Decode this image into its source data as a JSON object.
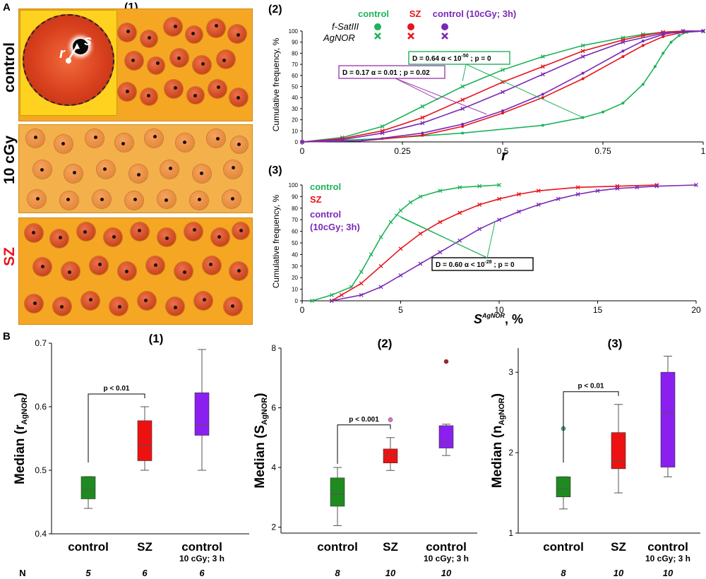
{
  "panel_A": {
    "letter": "A",
    "micro_title": "(1)",
    "rows": [
      "control",
      "10 cGy",
      "SZ"
    ],
    "inset_labels": {
      "r": "r",
      "s": "s"
    }
  },
  "panel_B": {
    "letter": "B",
    "n_label": "N"
  },
  "colors": {
    "control": "#1fb25a",
    "sz": "#e8141b",
    "irr": "#7a29b6",
    "box_control": "#1f8a1f",
    "box_sz": "#ee1111",
    "box_irr": "#8a1ff0"
  },
  "chart_data": [
    {
      "id": "A2",
      "type": "line",
      "panel_label": "(2)",
      "ylabel": "Cumulative frequency, %",
      "xlabel": "r",
      "xlim": [
        0,
        1
      ],
      "ylim": [
        0,
        100
      ],
      "x_ticks": [
        "0",
        "0.25",
        "0.5",
        "0.75",
        "1"
      ],
      "y_ticks": [
        "0",
        "10",
        "20",
        "30",
        "40",
        "50",
        "60",
        "70",
        "80",
        "90",
        "100"
      ],
      "legend": {
        "headers": [
          "control",
          "SZ",
          "control (10cGy; 3h)"
        ],
        "rows": [
          "f-SatIII",
          "AgNOR"
        ]
      },
      "annotations": [
        {
          "text": "D = 0.64   α < 10",
          "sup": "-50",
          "tail": " ; p = 0",
          "color": "#1fb25a"
        },
        {
          "text": "D = 0.17   α = 0.01 ; p = 0.02",
          "color": "#a040b0"
        }
      ],
      "series": [
        {
          "name": "control f-SatIII",
          "color": "#1fb25a",
          "marker": "dot",
          "x": [
            0,
            0.2,
            0.4,
            0.6,
            0.7,
            0.75,
            0.8,
            0.85,
            0.88,
            0.9,
            0.92,
            0.94,
            0.96,
            1.0
          ],
          "y": [
            0,
            3,
            8,
            15,
            22,
            27,
            35,
            52,
            68,
            80,
            90,
            96,
            99,
            100
          ]
        },
        {
          "name": "control AgNOR",
          "color": "#1fb25a",
          "marker": "x",
          "x": [
            0,
            0.1,
            0.2,
            0.3,
            0.4,
            0.5,
            0.6,
            0.7,
            0.8,
            0.85,
            0.9,
            0.95,
            1.0
          ],
          "y": [
            0,
            4,
            14,
            32,
            50,
            65,
            77,
            87,
            94,
            97,
            99,
            100,
            100
          ]
        },
        {
          "name": "SZ f-SatIII",
          "color": "#e8141b",
          "marker": "dot",
          "x": [
            0,
            0.15,
            0.3,
            0.4,
            0.5,
            0.6,
            0.7,
            0.8,
            0.85,
            0.9,
            0.95,
            1.0
          ],
          "y": [
            0,
            1,
            6,
            14,
            26,
            40,
            57,
            77,
            87,
            95,
            99,
            100
          ]
        },
        {
          "name": "SZ AgNOR",
          "color": "#e8141b",
          "marker": "x",
          "x": [
            0,
            0.1,
            0.2,
            0.3,
            0.4,
            0.5,
            0.6,
            0.7,
            0.8,
            0.85,
            0.9,
            0.95,
            1.0
          ],
          "y": [
            0,
            3,
            10,
            22,
            38,
            54,
            68,
            82,
            92,
            96,
            99,
            100,
            100
          ]
        },
        {
          "name": "control (10cGy; 3h) f-SatIII",
          "color": "#7a29b6",
          "marker": "dot",
          "x": [
            0,
            0.15,
            0.3,
            0.4,
            0.5,
            0.6,
            0.7,
            0.8,
            0.85,
            0.9,
            0.95,
            1.0
          ],
          "y": [
            0,
            1,
            8,
            16,
            28,
            43,
            62,
            82,
            91,
            97,
            100,
            100
          ]
        },
        {
          "name": "control (10cGy; 3h) AgNOR",
          "color": "#7a29b6",
          "marker": "x",
          "x": [
            0,
            0.1,
            0.2,
            0.3,
            0.4,
            0.5,
            0.6,
            0.7,
            0.8,
            0.9,
            1.0
          ],
          "y": [
            0,
            2,
            8,
            17,
            30,
            45,
            61,
            77,
            90,
            98,
            100
          ]
        }
      ]
    },
    {
      "id": "A3",
      "type": "line",
      "panel_label": "(3)",
      "ylabel": "Cumulative frequency, %",
      "xlabel": "S",
      "xlabel_sup": "AgNOR",
      "xlabel_tail": ", %",
      "xlim": [
        0,
        20
      ],
      "ylim": [
        0,
        100
      ],
      "x_ticks": [
        "0",
        "5",
        "10",
        "15",
        "20"
      ],
      "y_ticks": [
        "0",
        "10",
        "20",
        "30",
        "40",
        "50",
        "60",
        "70",
        "80",
        "90",
        "100"
      ],
      "legend": [
        "control",
        "SZ",
        "control",
        "(10cGy; 3h)"
      ],
      "annotation": {
        "text": "D = 0.60   α < 10",
        "sup": "-28",
        "tail": " ; p = 0"
      },
      "series": [
        {
          "name": "control",
          "color": "#1fb25a",
          "x": [
            0.5,
            1.5,
            2.5,
            3.0,
            3.5,
            4.0,
            4.5,
            5.0,
            5.5,
            6.0,
            7.0,
            8.0,
            9.0,
            10.0
          ],
          "y": [
            0,
            5,
            12,
            25,
            40,
            55,
            68,
            78,
            85,
            90,
            95,
            98,
            99,
            100
          ]
        },
        {
          "name": "SZ",
          "color": "#e8141b",
          "x": [
            1.5,
            2.0,
            3.0,
            4.0,
            5.0,
            6.0,
            7.0,
            8.0,
            9.0,
            10.0,
            11.0,
            12.0,
            14.0,
            16.0,
            18.0
          ],
          "y": [
            0,
            5,
            15,
            30,
            45,
            58,
            68,
            76,
            83,
            88,
            92,
            95,
            98,
            99,
            100
          ]
        },
        {
          "name": "control (10cGy; 3h)",
          "color": "#7a29b6",
          "x": [
            1.5,
            3.0,
            4.0,
            5.0,
            6.0,
            7.0,
            8.0,
            9.0,
            10.0,
            11.0,
            12.0,
            13.0,
            14.0,
            15.0,
            16.0,
            17.0,
            18.0,
            20.0
          ],
          "y": [
            0,
            5,
            12,
            22,
            32,
            42,
            52,
            62,
            70,
            77,
            83,
            88,
            92,
            95,
            97,
            98,
            99,
            100
          ]
        }
      ]
    },
    {
      "id": "B1",
      "type": "box",
      "panel_label": "(1)",
      "ylabel": "Median (r",
      "ylabel_sub": "AgNOR",
      "ylabel_tail": ")",
      "ylim": [
        0.4,
        0.7
      ],
      "y_ticks": [
        "0.4",
        "0.5",
        "0.6",
        "0.7"
      ],
      "categories": [
        "control",
        "SZ",
        "control"
      ],
      "category_sub": [
        "",
        "",
        "10 cGy; 3 h"
      ],
      "n": [
        "5",
        "6",
        "6"
      ],
      "significance": "p < 0.01",
      "boxes": [
        {
          "min": 0.44,
          "q1": 0.455,
          "median": 0.47,
          "q3": 0.49,
          "max": 0.49,
          "outliers": []
        },
        {
          "min": 0.5,
          "q1": 0.515,
          "median": 0.54,
          "q3": 0.578,
          "max": 0.6,
          "outliers": []
        },
        {
          "min": 0.5,
          "q1": 0.555,
          "median": 0.572,
          "q3": 0.622,
          "max": 0.69,
          "outliers": []
        }
      ]
    },
    {
      "id": "B2",
      "type": "box",
      "panel_label": "(2)",
      "ylabel": "Median (S",
      "ylabel_sub": "AgNOR",
      "ylabel_tail": ")",
      "ylim": [
        1.8,
        8.0
      ],
      "y_ticks": [
        "2",
        "4",
        "6",
        "8"
      ],
      "categories": [
        "control",
        "SZ",
        "control"
      ],
      "category_sub": [
        "",
        "",
        "10 cGy; 3 h"
      ],
      "n": [
        "8",
        "10",
        "10"
      ],
      "significance": "p < 0.001",
      "boxes": [
        {
          "min": 2.05,
          "q1": 2.7,
          "median": 3.1,
          "q3": 3.65,
          "max": 4.0,
          "outliers": []
        },
        {
          "min": 3.9,
          "q1": 4.15,
          "median": 4.4,
          "q3": 4.62,
          "max": 5.0,
          "outliers": [
            5.6
          ]
        },
        {
          "min": 4.4,
          "q1": 4.65,
          "median": 4.85,
          "q3": 5.4,
          "max": 5.45,
          "outliers": [
            7.55
          ]
        }
      ]
    },
    {
      "id": "B3",
      "type": "box",
      "panel_label": "(3)",
      "ylabel": "Median (n",
      "ylabel_sub": "AgNOR",
      "ylabel_tail": ")",
      "ylim": [
        1.0,
        3.3
      ],
      "y_ticks": [
        "1",
        "2",
        "3"
      ],
      "categories": [
        "control",
        "SZ",
        "control"
      ],
      "category_sub": [
        "",
        "",
        "10 cGy; 3 h"
      ],
      "n": [
        "8",
        "10",
        "10"
      ],
      "significance": "p < 0.01",
      "boxes": [
        {
          "min": 1.3,
          "q1": 1.45,
          "median": 1.55,
          "q3": 1.7,
          "max": 1.7,
          "outliers": [
            2.3
          ]
        },
        {
          "min": 1.5,
          "q1": 1.8,
          "median": 1.9,
          "q3": 2.25,
          "max": 2.6,
          "outliers": []
        },
        {
          "min": 1.7,
          "q1": 1.82,
          "median": 2.5,
          "q3": 3.0,
          "max": 3.2,
          "outliers": []
        }
      ]
    }
  ]
}
